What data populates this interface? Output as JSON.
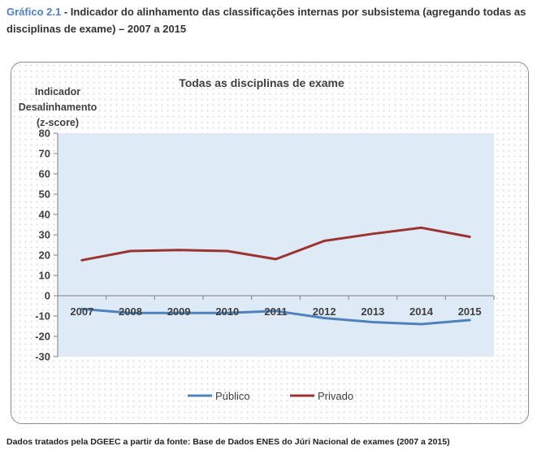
{
  "caption": {
    "number": "Gráfico 2.1",
    "separator": " - ",
    "text": "Indicador do alinhamento das classificações internas por subsistema (agregando todas as disciplinas de exame) – 2007 a 2015"
  },
  "source_note": "Dados tratados pela DGEEC a partir da fonte: Base de Dados ENES do Júri Nacional de exames (2007 a 2015)",
  "colors": {
    "publico": "#4f81bd",
    "privado": "#9b3431",
    "plot_bg": "#deeaf6",
    "axis": "#7f7f7f"
  },
  "chart_data": {
    "type": "line",
    "title": "Todas as disciplinas de exame",
    "ylabel_lines": [
      "Indicador",
      "Desalinhamento",
      "(z-score)"
    ],
    "xlabel": "",
    "categories": [
      "2007",
      "2008",
      "2009",
      "2010",
      "2011",
      "2012",
      "2013",
      "2014",
      "2015"
    ],
    "yticks": [
      80,
      70,
      60,
      50,
      40,
      30,
      20,
      10,
      0,
      -10,
      -20,
      -30
    ],
    "ylim": [
      -30,
      80
    ],
    "grid": false,
    "legend_position": "bottom",
    "series": [
      {
        "name": "Público",
        "color": "#4f81bd",
        "values": [
          -6.5,
          -8.5,
          -8.5,
          -8.5,
          -7.5,
          -11,
          -13,
          -14,
          -12
        ]
      },
      {
        "name": "Privado",
        "color": "#9b3431",
        "values": [
          17.5,
          22,
          22.5,
          22,
          18,
          27,
          30.5,
          33.5,
          29
        ]
      }
    ]
  }
}
